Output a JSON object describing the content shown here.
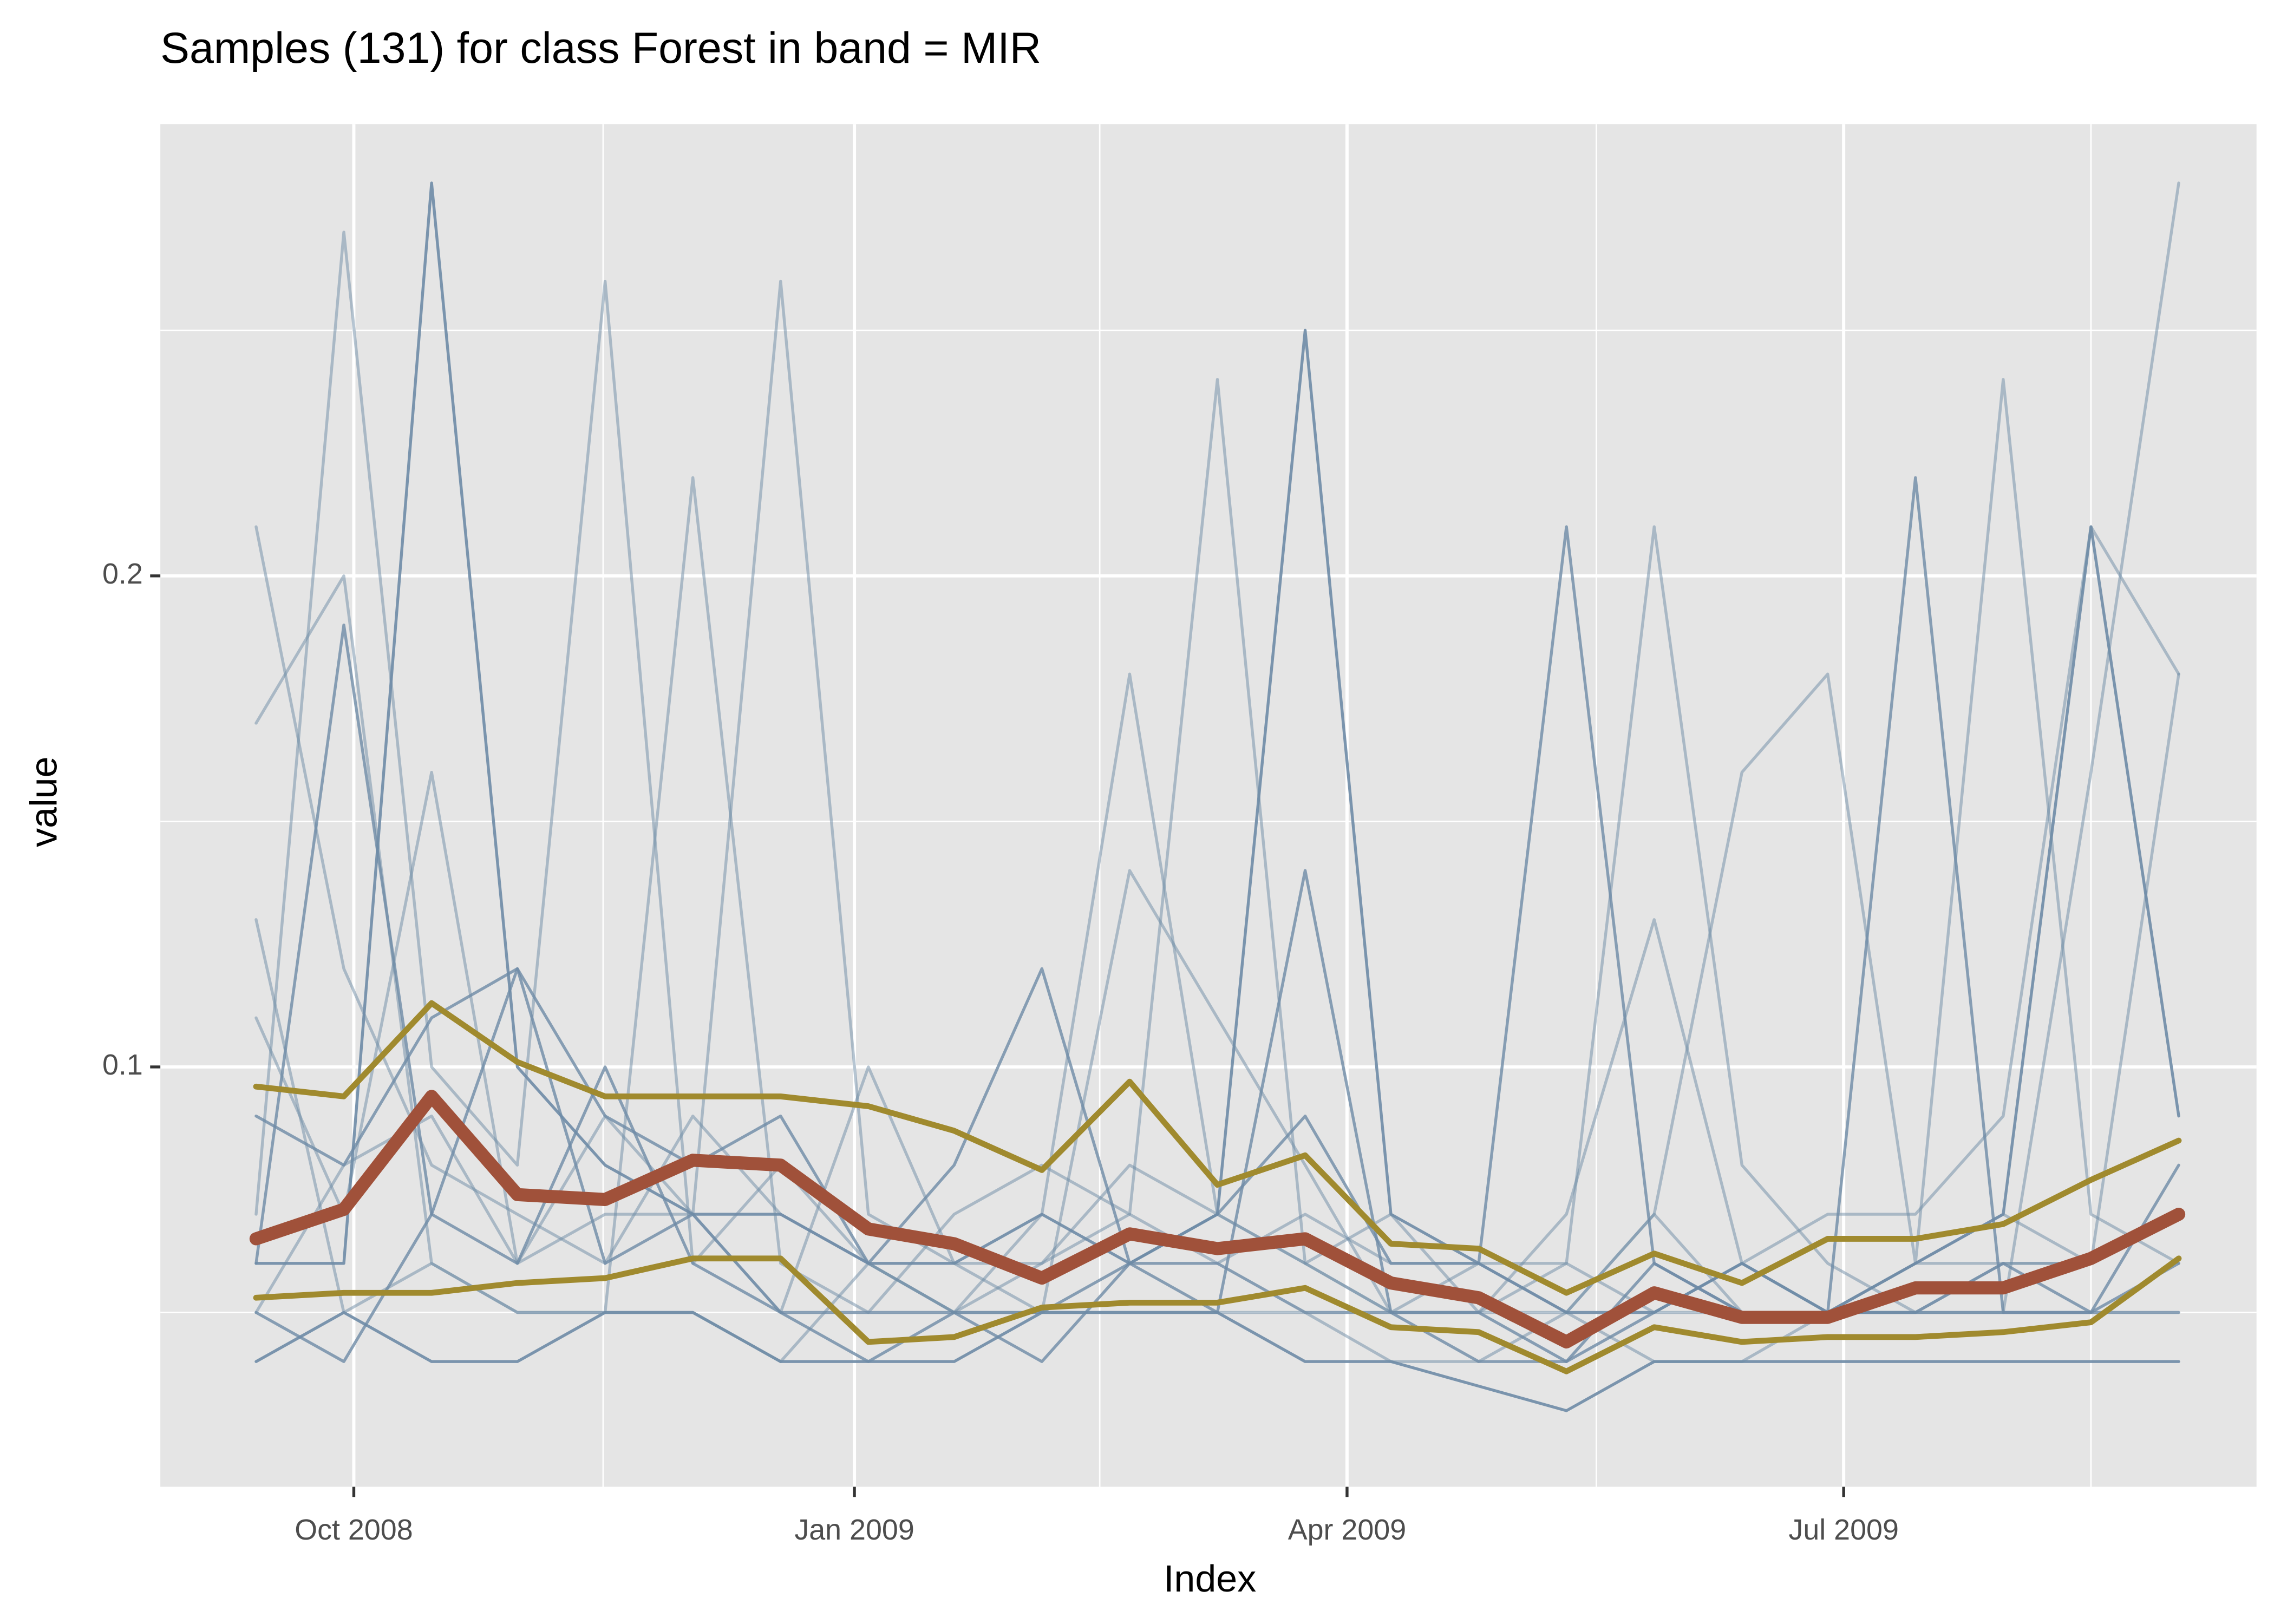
{
  "chart_data": {
    "type": "line",
    "title": "Samples (131) for class Forest in band = MIR",
    "x_label": "Index",
    "y_label": "value",
    "x": [
      2008.7,
      2008.744,
      2008.788,
      2008.831,
      2008.875,
      2008.919,
      2008.963,
      2009.007,
      2009.05,
      2009.094,
      2009.138,
      2009.182,
      2009.226,
      2009.269,
      2009.313,
      2009.357,
      2009.401,
      2009.445,
      2009.488,
      2009.532,
      2009.576,
      2009.62,
      2009.664
    ],
    "xlim": [
      2008.652,
      2009.703
    ],
    "xticks": [
      {
        "value": 2008.749,
        "label": "Oct 2008"
      },
      {
        "value": 2009.0,
        "label": "Jan 2009"
      },
      {
        "value": 2009.247,
        "label": "Apr 2009"
      },
      {
        "value": 2009.496,
        "label": "Jul 2009"
      }
    ],
    "xminor": [
      2008.874,
      2009.123,
      2009.372,
      2009.62
    ],
    "ylim": [
      0.0145,
      0.292
    ],
    "yticks": [
      0.1,
      0.2
    ],
    "yminor": [
      0.05,
      0.15,
      0.25
    ],
    "grid": true,
    "series": [
      {
        "color": "#6E8BA6",
        "opacity": 0.5,
        "linewidth": 2,
        "values": [
          0.21,
          0.12,
          0.08,
          0.07,
          0.06,
          0.09,
          0.07,
          0.06,
          0.05,
          0.07,
          0.18,
          0.07,
          0.06,
          0.05,
          0.06,
          0.05,
          0.07,
          0.05,
          0.05,
          0.06,
          0.07,
          0.06,
          0.18
        ]
      },
      {
        "color": "#6E8BA6",
        "opacity": 0.5,
        "linewidth": 2,
        "values": [
          0.07,
          0.27,
          0.1,
          0.08,
          0.26,
          0.06,
          0.08,
          0.06,
          0.05,
          0.06,
          0.08,
          0.07,
          0.06,
          0.05,
          0.05,
          0.06,
          0.21,
          0.08,
          0.06,
          0.05,
          0.06,
          0.06,
          0.07
        ]
      },
      {
        "color": "#6E8BA6",
        "opacity": 0.9,
        "linewidth": 2,
        "values": [
          0.06,
          0.06,
          0.28,
          0.1,
          0.08,
          0.07,
          0.07,
          0.06,
          0.06,
          0.07,
          0.06,
          0.07,
          0.25,
          0.07,
          0.06,
          0.05,
          0.05,
          0.06,
          0.05,
          0.06,
          0.07,
          0.21,
          0.09
        ]
      },
      {
        "color": "#6E8BA6",
        "opacity": 0.5,
        "linewidth": 2,
        "values": [
          0.05,
          0.08,
          0.09,
          0.06,
          0.07,
          0.07,
          0.26,
          0.07,
          0.06,
          0.06,
          0.07,
          0.06,
          0.07,
          0.06,
          0.06,
          0.06,
          0.05,
          0.05,
          0.05,
          0.06,
          0.06,
          0.06,
          0.07
        ]
      },
      {
        "color": "#6E8BA6",
        "opacity": 0.5,
        "linewidth": 2,
        "values": [
          0.13,
          0.05,
          0.06,
          0.05,
          0.05,
          0.22,
          0.06,
          0.05,
          0.07,
          0.08,
          0.07,
          0.24,
          0.06,
          0.07,
          0.05,
          0.05,
          0.07,
          0.16,
          0.18,
          0.06,
          0.24,
          0.07,
          0.06
        ]
      },
      {
        "color": "#6E8BA6",
        "opacity": 0.8,
        "linewidth": 2,
        "values": [
          0.09,
          0.08,
          0.11,
          0.12,
          0.09,
          0.08,
          0.09,
          0.06,
          0.08,
          0.12,
          0.06,
          0.07,
          0.09,
          0.06,
          0.06,
          0.21,
          0.06,
          0.05,
          0.05,
          0.05,
          0.05,
          0.05,
          0.06
        ]
      },
      {
        "color": "#6E8BA6",
        "opacity": 0.9,
        "linewidth": 2,
        "values": [
          0.04,
          0.05,
          0.04,
          0.04,
          0.05,
          0.05,
          0.04,
          0.04,
          0.04,
          0.05,
          0.05,
          0.05,
          0.04,
          0.04,
          0.035,
          0.03,
          0.04,
          0.04,
          0.04,
          0.04,
          0.04,
          0.04,
          0.04
        ]
      },
      {
        "color": "#6E8BA6",
        "opacity": 0.8,
        "linewidth": 2,
        "values": [
          0.06,
          0.19,
          0.07,
          0.06,
          0.1,
          0.06,
          0.05,
          0.05,
          0.05,
          0.05,
          0.06,
          0.05,
          0.14,
          0.05,
          0.04,
          0.04,
          0.05,
          0.06,
          0.05,
          0.22,
          0.05,
          0.05,
          0.05
        ]
      },
      {
        "color": "#6E8BA6",
        "opacity": 0.5,
        "linewidth": 2,
        "values": [
          0.11,
          0.07,
          0.16,
          0.06,
          0.09,
          0.07,
          0.05,
          0.1,
          0.06,
          0.05,
          0.14,
          0.11,
          0.08,
          0.05,
          0.05,
          0.07,
          0.13,
          0.06,
          0.07,
          0.07,
          0.09,
          0.21,
          0.18
        ]
      },
      {
        "color": "#6E8BA6",
        "opacity": 0.8,
        "linewidth": 2,
        "values": [
          0.05,
          0.04,
          0.07,
          0.12,
          0.06,
          0.07,
          0.05,
          0.04,
          0.05,
          0.04,
          0.06,
          0.06,
          0.05,
          0.05,
          0.05,
          0.04,
          0.06,
          0.05,
          0.05,
          0.05,
          0.06,
          0.05,
          0.08
        ]
      },
      {
        "color": "#6E8BA6",
        "opacity": 0.5,
        "linewidth": 2,
        "values": [
          0.17,
          0.2,
          0.06,
          0.05,
          0.05,
          0.05,
          0.04,
          0.06,
          0.05,
          0.05,
          0.05,
          0.05,
          0.05,
          0.04,
          0.04,
          0.05,
          0.04,
          0.04,
          0.05,
          0.05,
          0.05,
          0.16,
          0.28
        ]
      },
      {
        "color": "#A08A2E",
        "opacity": 1,
        "linewidth": 4,
        "values": [
          0.096,
          0.094,
          0.113,
          0.101,
          0.094,
          0.094,
          0.094,
          0.092,
          0.087,
          0.079,
          0.097,
          0.076,
          0.082,
          0.064,
          0.063,
          0.054,
          0.062,
          0.056,
          0.065,
          0.065,
          0.068,
          0.077,
          0.085
        ]
      },
      {
        "color": "#A08A2E",
        "opacity": 1,
        "linewidth": 4,
        "values": [
          0.053,
          0.054,
          0.054,
          0.056,
          0.057,
          0.061,
          0.061,
          0.044,
          0.045,
          0.051,
          0.052,
          0.052,
          0.055,
          0.047,
          0.046,
          0.038,
          0.047,
          0.044,
          0.045,
          0.045,
          0.046,
          0.048,
          0.061
        ]
      },
      {
        "color": "#A0513A",
        "opacity": 1,
        "linewidth": 9,
        "values": [
          0.065,
          0.071,
          0.094,
          0.074,
          0.073,
          0.081,
          0.08,
          0.067,
          0.064,
          0.057,
          0.066,
          0.063,
          0.065,
          0.056,
          0.053,
          0.044,
          0.054,
          0.049,
          0.049,
          0.055,
          0.055,
          0.061,
          0.07
        ]
      }
    ]
  }
}
